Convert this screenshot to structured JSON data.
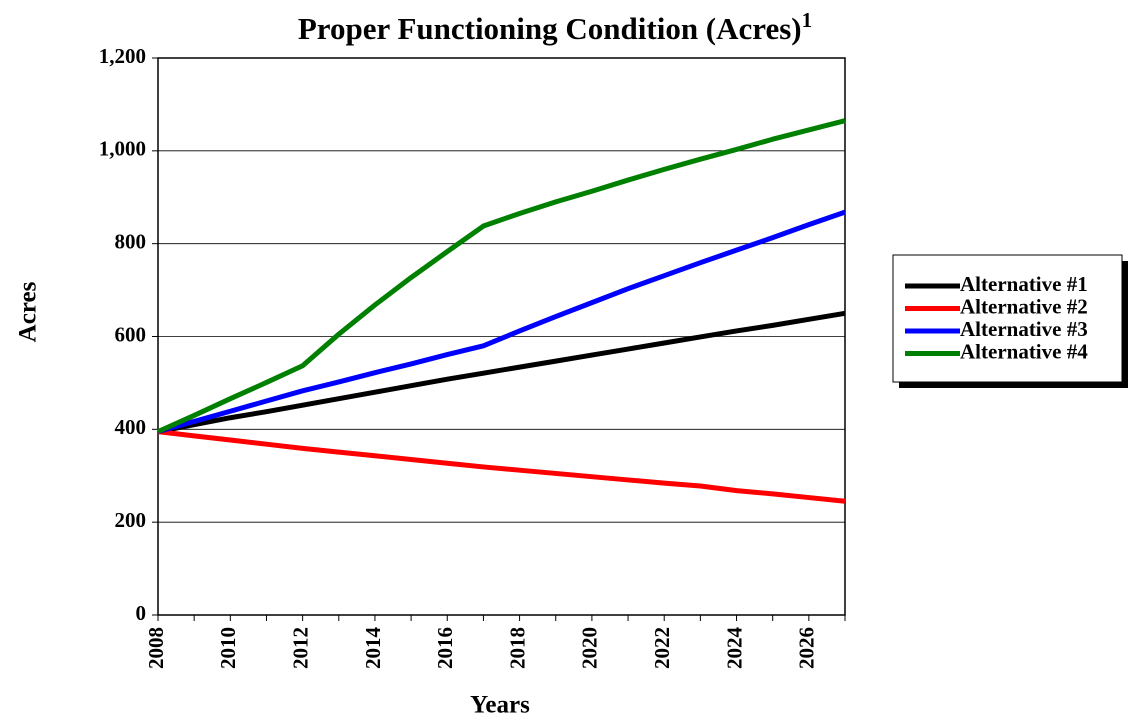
{
  "chart_data": {
    "type": "line",
    "title": "Proper Functioning Condition (Acres)",
    "title_superscript": "1",
    "x_label": "Years",
    "y_label": "Acres",
    "x": [
      2008,
      2009,
      2010,
      2011,
      2012,
      2013,
      2014,
      2015,
      2016,
      2017,
      2018,
      2019,
      2020,
      2021,
      2022,
      2023,
      2024,
      2025,
      2026,
      2027
    ],
    "series": [
      {
        "name": "Alternative #1",
        "color": "#000000",
        "values": [
          395,
          410,
          425,
          438,
          452,
          466,
          480,
          494,
          508,
          521,
          534,
          547,
          560,
          573,
          586,
          599,
          612,
          624,
          637,
          650
        ]
      },
      {
        "name": "Alternative #2",
        "color": "#ff0000",
        "values": [
          395,
          386,
          377,
          368,
          359,
          351,
          343,
          335,
          327,
          319,
          312,
          305,
          298,
          291,
          284,
          278,
          268,
          261,
          253,
          245
        ]
      },
      {
        "name": "Alternative #3",
        "color": "#0000ff",
        "values": [
          395,
          417,
          439,
          461,
          483,
          502,
          522,
          541,
          561,
          580,
          612,
          643,
          673,
          703,
          731,
          759,
          786,
          813,
          841,
          868
        ]
      },
      {
        "name": "Alternative #4",
        "color": "#008000",
        "values": [
          395,
          430,
          466,
          501,
          537,
          605,
          668,
          727,
          783,
          838,
          865,
          890,
          913,
          937,
          960,
          982,
          1003,
          1025,
          1045,
          1065
        ]
      }
    ],
    "xlim": [
      2008,
      2027
    ],
    "xticks": [
      2008,
      2010,
      2012,
      2014,
      2016,
      2018,
      2020,
      2022,
      2024,
      2026
    ],
    "ylim": [
      0,
      1200
    ],
    "yticks": [
      0,
      200,
      400,
      600,
      800,
      {
        "value": 1000,
        "label": "1,000"
      },
      {
        "value": 1200,
        "label": "1,200"
      }
    ],
    "grid": true,
    "legend": "right"
  }
}
